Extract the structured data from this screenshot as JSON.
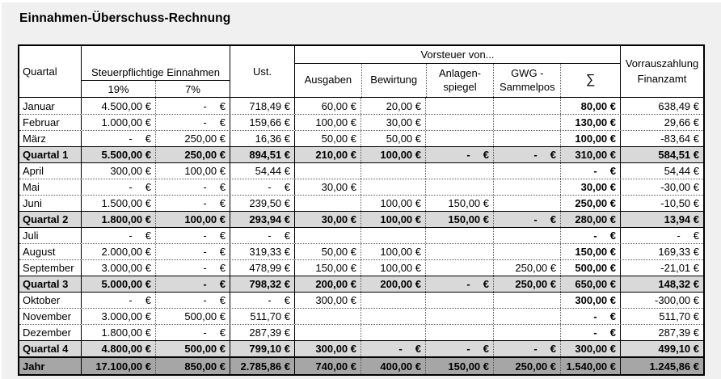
{
  "page_title": "Einnahmen-Überschuss-Rechnung",
  "colors": {
    "page_bg": "#f0f0f0",
    "cell_bg": "#ffffff",
    "quarter_row_bg": "#d9d9d9",
    "year_row_bg": "#a6a6a6",
    "border": "#000000"
  },
  "table": {
    "header": {
      "quartal": "Quartal",
      "einnahmen_group": "Steuerpflichtige Einnahmen",
      "rate_19": "19%",
      "rate_7": "7%",
      "ust": "Ust.",
      "vorsteuer_group": "Vorsteuer von...",
      "ausgaben": "Ausgaben",
      "bewirtung": "Bewirtung",
      "anlagenspiegel_line1": "Anlagen-",
      "anlagenspiegel_line2": "spiegel",
      "gwg_line1": "GWG -",
      "gwg_line2": "Sammelpos",
      "sum_symbol": "∑",
      "vorrauszahlung_line1": "Vorrauszahlung",
      "vorrauszahlung_line2": "Finanzamt"
    },
    "rows": [
      {
        "label": "Januar",
        "type": "month",
        "cells": [
          "4.500,00 €",
          "- €",
          "718,49 €",
          "60,00 €",
          "20,00 €",
          "",
          "",
          "80,00 €",
          "638,49 €"
        ]
      },
      {
        "label": "Februar",
        "type": "month",
        "cells": [
          "1.000,00 €",
          "- €",
          "159,66 €",
          "100,00 €",
          "30,00 €",
          "",
          "",
          "130,00 €",
          "29,66 €"
        ]
      },
      {
        "label": "März",
        "type": "month",
        "cells": [
          "- €",
          "250,00 €",
          "16,36 €",
          "50,00 €",
          "50,00 €",
          "",
          "",
          "100,00 €",
          "- 83,64 €"
        ]
      },
      {
        "label": "Quartal 1",
        "type": "quarter",
        "cells": [
          "5.500,00 €",
          "250,00 €",
          "894,51 €",
          "210,00 €",
          "100,00 €",
          "- €",
          "- €",
          "310,00 €",
          "584,51 €"
        ]
      },
      {
        "label": "April",
        "type": "month",
        "cells": [
          "300,00 €",
          "100,00 €",
          "54,44 €",
          "",
          "",
          "",
          "",
          "- €",
          "54,44 €"
        ]
      },
      {
        "label": "Mai",
        "type": "month",
        "cells": [
          "- €",
          "- €",
          "- €",
          "30,00 €",
          "",
          "",
          "",
          "30,00 €",
          "- 30,00 €"
        ]
      },
      {
        "label": "Juni",
        "type": "month",
        "cells": [
          "1.500,00 €",
          "- €",
          "239,50 €",
          "",
          "100,00 €",
          "150,00 €",
          "",
          "250,00 €",
          "- 10,50 €"
        ]
      },
      {
        "label": "Quartal 2",
        "type": "quarter",
        "cells": [
          "1.800,00 €",
          "100,00 €",
          "293,94 €",
          "30,00 €",
          "100,00 €",
          "150,00 €",
          "- €",
          "280,00 €",
          "13,94 €"
        ]
      },
      {
        "label": "Juli",
        "type": "month",
        "cells": [
          "- €",
          "- €",
          "- €",
          "",
          "",
          "",
          "",
          "- €",
          "- €"
        ]
      },
      {
        "label": "August",
        "type": "month",
        "cells": [
          "2.000,00 €",
          "- €",
          "319,33 €",
          "50,00 €",
          "100,00 €",
          "",
          "",
          "150,00 €",
          "169,33 €"
        ]
      },
      {
        "label": "September",
        "type": "month",
        "cells": [
          "3.000,00 €",
          "- €",
          "478,99 €",
          "150,00 €",
          "100,00 €",
          "",
          "250,00 €",
          "500,00 €",
          "- 21,01 €"
        ]
      },
      {
        "label": "Quartal 3",
        "type": "quarter",
        "cells": [
          "5.000,00 €",
          "- €",
          "798,32 €",
          "200,00 €",
          "200,00 €",
          "- €",
          "250,00 €",
          "650,00 €",
          "148,32 €"
        ]
      },
      {
        "label": "Oktober",
        "type": "month",
        "cells": [
          "- €",
          "- €",
          "- €",
          "300,00 €",
          "",
          "",
          "",
          "300,00 €",
          "- 300,00 €"
        ]
      },
      {
        "label": "November",
        "type": "month",
        "cells": [
          "3.000,00 €",
          "500,00 €",
          "511,70 €",
          "",
          "",
          "",
          "",
          "- €",
          "511,70 €"
        ]
      },
      {
        "label": "Dezember",
        "type": "month",
        "cells": [
          "1.800,00 €",
          "- €",
          "287,39 €",
          "",
          "",
          "",
          "",
          "- €",
          "287,39 €"
        ]
      },
      {
        "label": "Quartal 4",
        "type": "quarter",
        "cells": [
          "4.800,00 €",
          "500,00 €",
          "799,10 €",
          "300,00 €",
          "- €",
          "- €",
          "- €",
          "300,00 €",
          "499,10 €"
        ]
      },
      {
        "label": "Jahr",
        "type": "year",
        "cells": [
          "17.100,00 €",
          "850,00 €",
          "2.785,86 €",
          "740,00 €",
          "400,00 €",
          "150,00 €",
          "250,00 €",
          "1.540,00 €",
          "1.245,86 €"
        ]
      }
    ]
  }
}
